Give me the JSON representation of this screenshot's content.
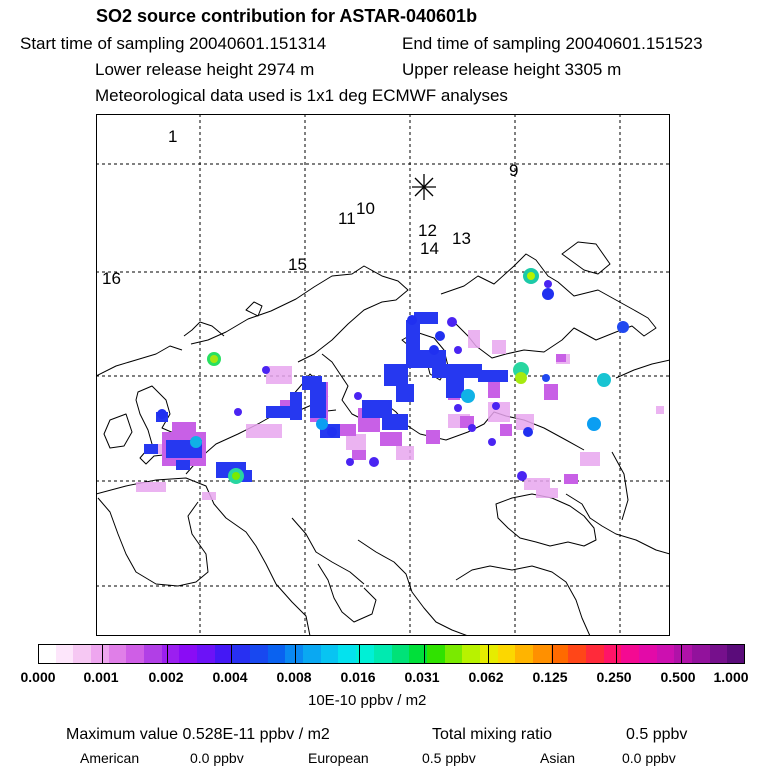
{
  "header": {
    "title": "SO2 source contribution for ASTAR-040601b",
    "start_time": "Start time of sampling 20040601.151314",
    "end_time": "End time of sampling 20040601.151523",
    "lower_height": "Lower release height 2974 m",
    "upper_height": "Upper release height 3305 m",
    "met_data": "Meteorological data used is 1x1 deg ECMWF analyses"
  },
  "map": {
    "trajectory_labels": [
      "1",
      "9",
      "10",
      "11",
      "12",
      "13",
      "14",
      "15",
      "16"
    ],
    "marker_icon": "star-marker"
  },
  "legend": {
    "ticks": [
      "0.000",
      "0.001",
      "0.002",
      "0.004",
      "0.008",
      "0.016",
      "0.031",
      "0.062",
      "0.125",
      "0.250",
      "0.500",
      "1.000"
    ],
    "unit": "10E-10 ppbv / m2",
    "colors": [
      "#ffffff",
      "#fde6fb",
      "#f6c8f3",
      "#eea6ef",
      "#e07fe8",
      "#cf5ee6",
      "#b13fe6",
      "#9b1ff0",
      "#8a0cf5",
      "#6c12f7",
      "#4418f5",
      "#2830f2",
      "#1848f0",
      "#0a62f0",
      "#0a88f2",
      "#0aa8f2",
      "#08c4f2",
      "#04e2ee",
      "#00f0d6",
      "#00eab0",
      "#00e278",
      "#00e03a",
      "#30e200",
      "#7aea00",
      "#b8f200",
      "#e6ec00",
      "#fcd700",
      "#ffb400",
      "#ff9000",
      "#ff6a00",
      "#ff4618",
      "#ff2a3a",
      "#ff1468",
      "#f40a92",
      "#e30aa8",
      "#cc10b0",
      "#b012a8",
      "#92129c",
      "#76108c",
      "#5a0c7a"
    ]
  },
  "summary": {
    "max_label": "Maximum value  0.528E-11 ppbv / m2",
    "total_label": "Total mixing ratio",
    "total_value": "0.5 ppbv",
    "american_label": "American",
    "american_value": "0.0 ppbv",
    "european_label": "European",
    "european_value": "0.5 ppbv",
    "asian_label": "Asian",
    "asian_value": "0.0 ppbv"
  }
}
